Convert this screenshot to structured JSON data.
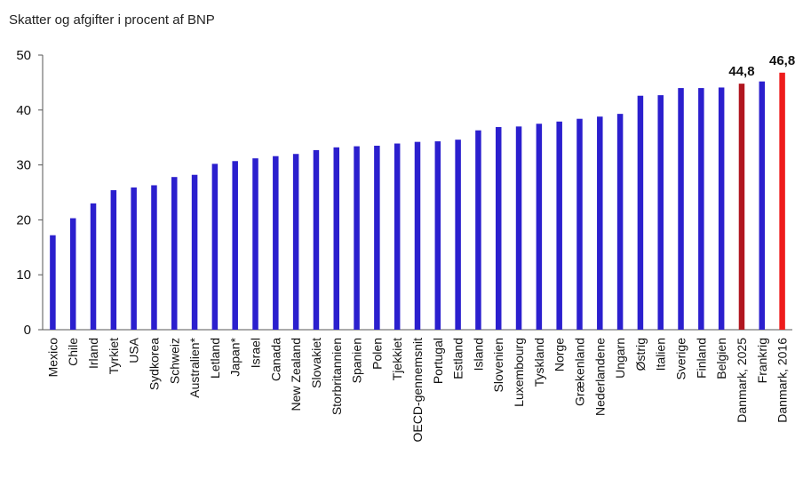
{
  "chart_data": {
    "type": "bar",
    "title": "Skatter og afgifter i procent af BNP",
    "xlabel": "",
    "ylabel": "",
    "ylim": [
      0,
      50
    ],
    "yticks": [
      0,
      10,
      20,
      30,
      40,
      50
    ],
    "grid": false,
    "categories": [
      "Mexico",
      "Chile",
      "Irland",
      "Tyrkiet",
      "USA",
      "Sydkorea",
      "Schweiz",
      "Australien*",
      "Letland",
      "Japan*",
      "Israel",
      "Canada",
      "New Zealand",
      "Slovakiet",
      "Storbritannien",
      "Spanien",
      "Polen",
      "Tjekkiet",
      "OECD-gennemsnit",
      "Portugal",
      "Estland",
      "Island",
      "Slovenien",
      "Luxembourg",
      "Tyskland",
      "Norge",
      "Grækenland",
      "Nederlandene",
      "Ungarn",
      "Østrig",
      "Italien",
      "Sverige",
      "Finland",
      "Belgien",
      "Danmark, 2025",
      "Frankrig",
      "Danmark, 2016"
    ],
    "values": [
      17.2,
      20.3,
      23.0,
      25.4,
      25.9,
      26.3,
      27.8,
      28.2,
      30.2,
      30.7,
      31.2,
      31.6,
      32.0,
      32.7,
      33.2,
      33.4,
      33.5,
      33.9,
      34.2,
      34.3,
      34.6,
      36.3,
      36.9,
      37.0,
      37.5,
      37.9,
      38.4,
      38.8,
      39.3,
      42.6,
      42.7,
      44.0,
      44.0,
      44.1,
      44.8,
      45.2,
      46.8
    ],
    "colors": {
      "default": "#2B1FCE",
      "highlight_dark": "#B0161F",
      "highlight_bright": "#EE1C1C",
      "text": "#111111"
    },
    "highlight": {
      "Danmark, 2025": "highlight_dark",
      "Danmark, 2016": "highlight_bright"
    },
    "data_labels": [
      {
        "category": "Danmark, 2025",
        "text": "44,8"
      },
      {
        "category": "Danmark, 2016",
        "text": "46,8"
      }
    ]
  }
}
